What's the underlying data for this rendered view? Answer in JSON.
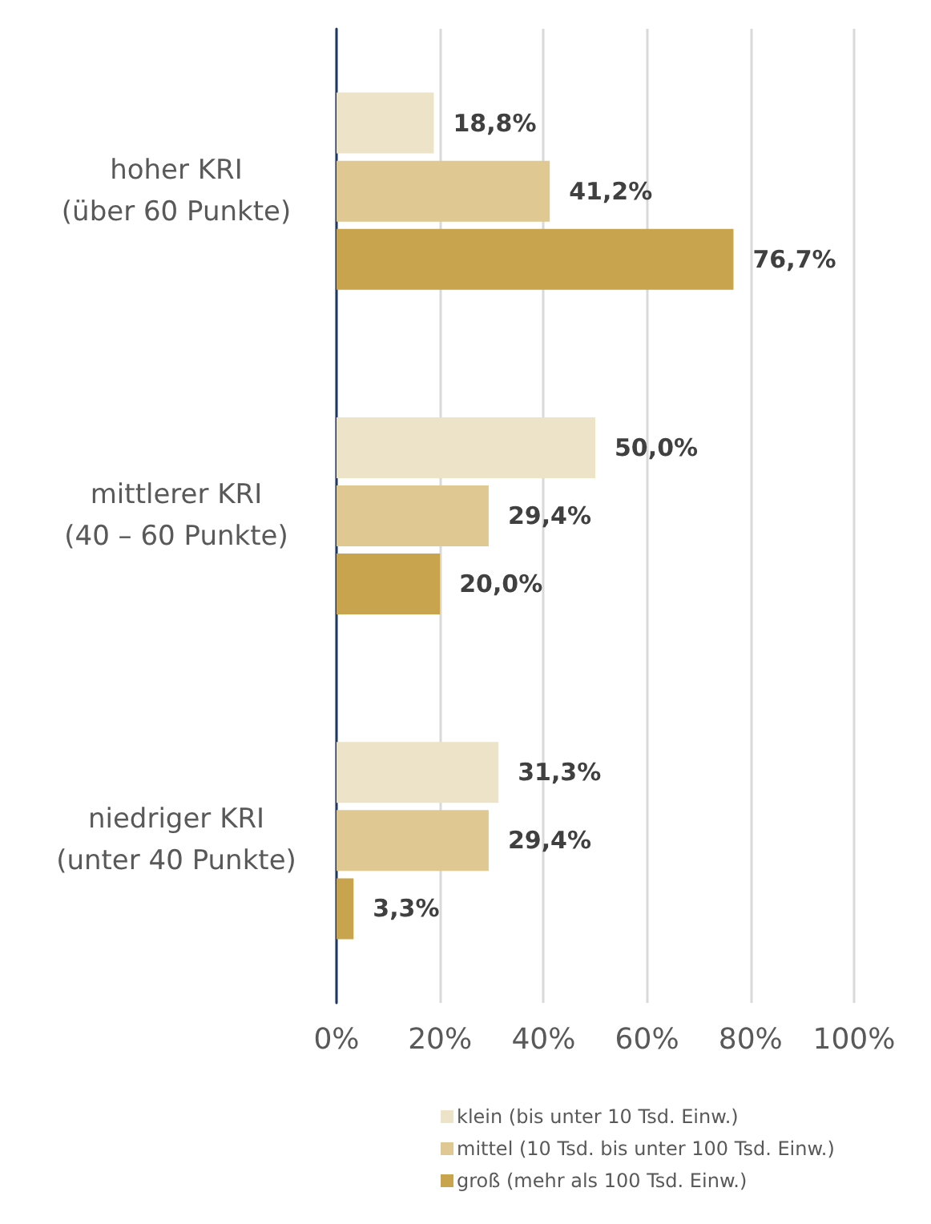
{
  "chart_data": {
    "type": "bar",
    "orientation": "horizontal",
    "categories": [
      "hoher KRI\n(über 60 Punkte)",
      "mittlerer KRI\n(40 – 60 Punkte)",
      "niedriger KRI\n(unter 40 Punkte)"
    ],
    "series": [
      {
        "name": "klein (bis unter 10 Tsd. Einw.)",
        "color": "#ede3c9",
        "values": [
          18.8,
          50.0,
          31.3
        ],
        "value_labels": [
          "18,8%",
          "50,0%",
          "31,3%"
        ]
      },
      {
        "name": "mittel (10 Tsd. bis unter 100 Tsd. Einw.)",
        "color": "#dfc892",
        "values": [
          41.2,
          29.4,
          29.4
        ],
        "value_labels": [
          "41,2%",
          "29,4%",
          "29,4%"
        ]
      },
      {
        "name": "groß (mehr als 100 Tsd. Einw.)",
        "color": "#c9a44f",
        "values": [
          76.7,
          20.0,
          3.3
        ],
        "value_labels": [
          "76,7%",
          "20,0%",
          "3,3%"
        ]
      }
    ],
    "xlim": [
      0,
      100
    ],
    "xticks": [
      {
        "value": 0,
        "label": "0%"
      },
      {
        "value": 20,
        "label": "20%"
      },
      {
        "value": 40,
        "label": "40%"
      },
      {
        "value": 60,
        "label": "60%"
      },
      {
        "value": 80,
        "label": "80%"
      },
      {
        "value": 100,
        "label": "100%"
      }
    ],
    "grid": "x",
    "legend": "bottom"
  }
}
